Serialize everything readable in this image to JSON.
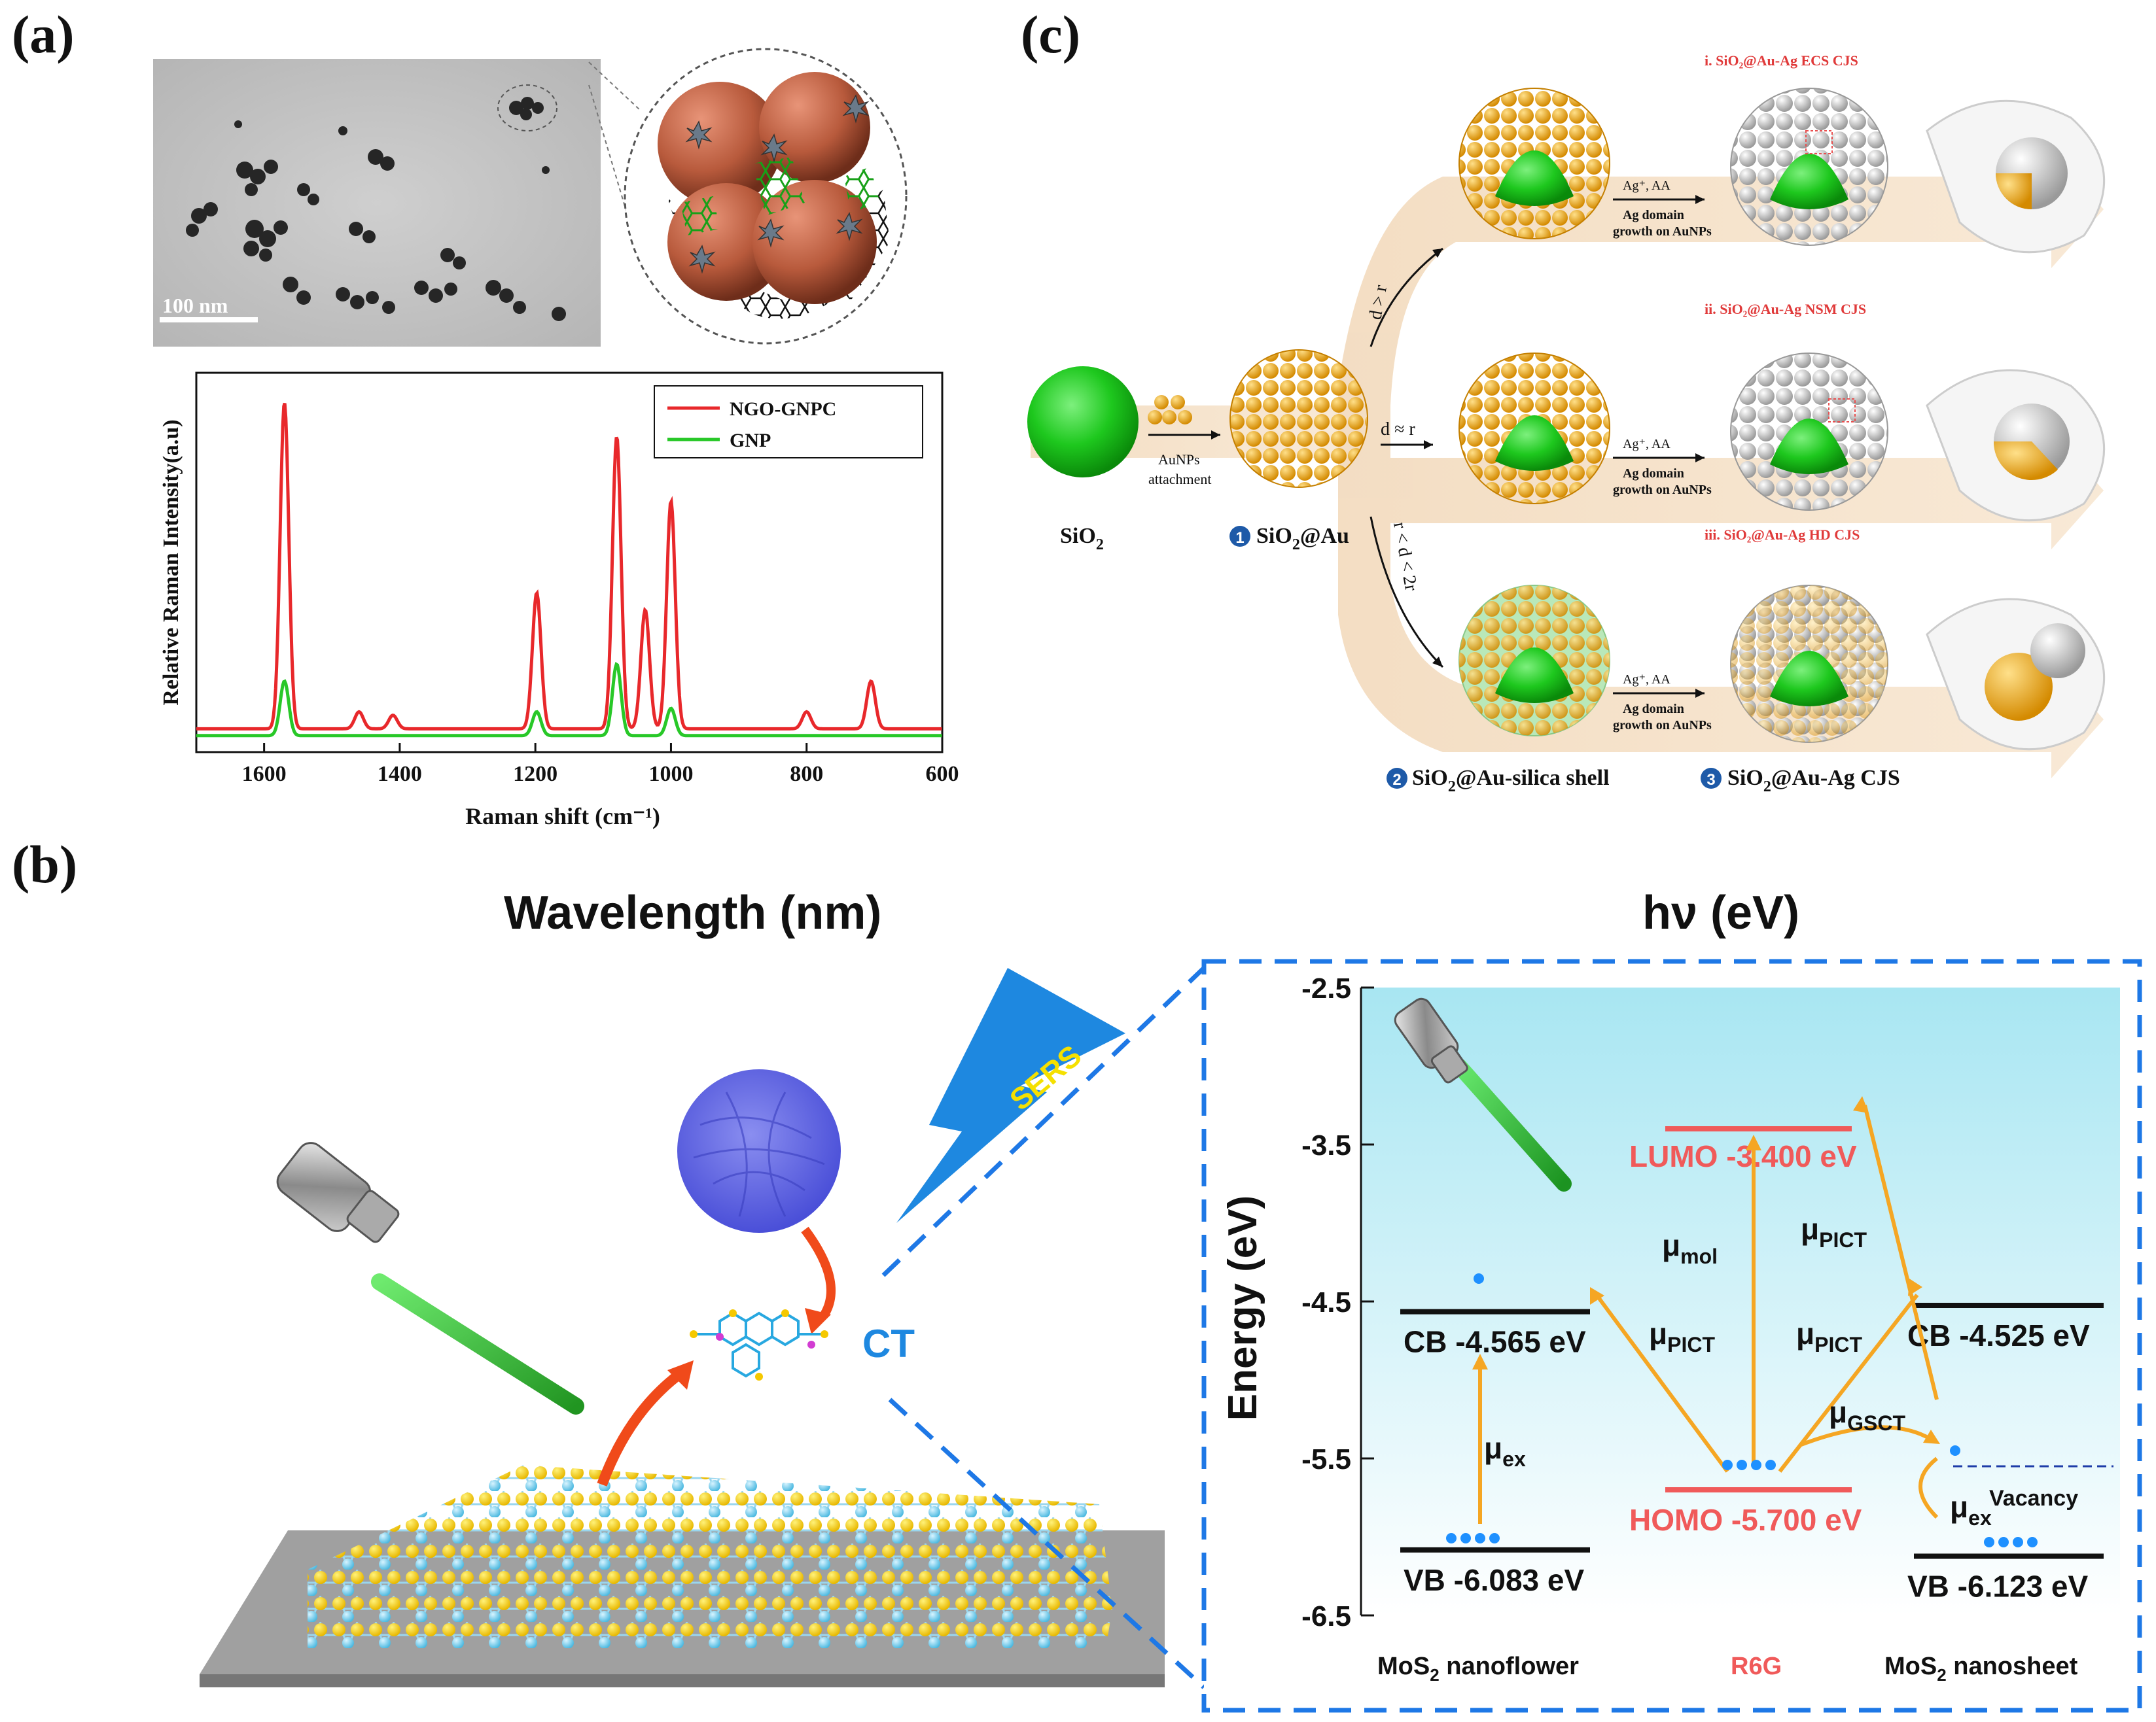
{
  "panels": {
    "a": "(a)",
    "b": "(b)",
    "c": "(c)"
  },
  "panel_a": {
    "scale_bar": "100 nm",
    "chart_data": {
      "type": "line",
      "title": "",
      "xlabel": "Raman shift (cm⁻¹)",
      "ylabel": "Relative Raman Intensity(a.u)",
      "xlim": [
        1700,
        600
      ],
      "ylim": [
        0,
        1.0
      ],
      "x_ticks": [
        1600,
        1400,
        1200,
        1000,
        800,
        600
      ],
      "legend_position": "top-right",
      "series": [
        {
          "name": "NGO-GNPC",
          "color": "#e8282b",
          "peaks": [
            [
              1570,
              0.96
            ],
            [
              1460,
              0.05
            ],
            [
              1410,
              0.04
            ],
            [
              1198,
              0.4
            ],
            [
              1080,
              0.86
            ],
            [
              1038,
              0.35
            ],
            [
              1000,
              0.67
            ],
            [
              800,
              0.05
            ],
            [
              705,
              0.14
            ]
          ],
          "baseline": 0.03
        },
        {
          "name": "GNP",
          "color": "#28c828",
          "peaks": [
            [
              1570,
              0.16
            ],
            [
              1198,
              0.07
            ],
            [
              1080,
              0.21
            ],
            [
              1000,
              0.08
            ]
          ],
          "baseline": 0.01
        }
      ]
    }
  },
  "panel_b": {
    "title_left": "Wavelength (nm)",
    "title_right": "hν (eV)",
    "sers": "SERS",
    "ct": "CT",
    "diagram": {
      "ylabel": "Energy (eV)",
      "yticks": [
        "-2.5",
        "-3.5",
        "-4.5",
        "-5.5",
        "-6.5"
      ],
      "ylim": [
        -6.5,
        -2.5
      ],
      "levels": [
        {
          "name": "CB",
          "label": "CB  -4.565 eV",
          "energy": -4.565,
          "group": "MoS2 nanoflower"
        },
        {
          "name": "VB",
          "label": "VB  -6.083 eV",
          "energy": -6.083,
          "group": "MoS2 nanoflower"
        },
        {
          "name": "LUMO",
          "label": "LUMO -3.400 eV",
          "energy": -3.4,
          "group": "R6G"
        },
        {
          "name": "HOMO",
          "label": "HOMO -5.700 eV",
          "energy": -5.7,
          "group": "R6G"
        },
        {
          "name": "CB",
          "label": "CB  -4.525 eV",
          "energy": -4.525,
          "group": "MoS2 nanosheet"
        },
        {
          "name": "VB",
          "label": "VB  -6.123 eV",
          "energy": -6.123,
          "group": "MoS2 nanosheet"
        },
        {
          "name": "Vacancy",
          "label": "Vacancy",
          "energy": -5.55,
          "group": "MoS2 nanosheet"
        }
      ],
      "transitions": {
        "mu_ex": "μ",
        "ex": "ex",
        "mu_mol": "μ",
        "mol": "mol",
        "mu_pict": "μ",
        "pict": "PICT",
        "mu_gsct": "μ",
        "gsct": "GSCT"
      },
      "groups": {
        "left_a": "MoS",
        "left_b": "2",
        "left_c": " nanoflower",
        "mid": "R6G",
        "right_a": "MoS",
        "right_b": "2",
        "right_c": " nanosheet"
      }
    }
  },
  "panel_c": {
    "sio2": "SiO",
    "sub2": "2",
    "step1": "SiO",
    "step1_b": "@Au",
    "step2": "SiO",
    "step2_b": "@Au-silica shell",
    "step3": "SiO",
    "step3_b": "@Au-Ag CJS",
    "num1": "1",
    "num2": "2",
    "num3": "3",
    "attach_a": "AuNPs",
    "attach_b": "attachment",
    "d_gt_r": "d > r",
    "d_eq_r": "d ≈ r",
    "d_range": "r < d < 2r",
    "reagent": "Ag⁺, AA",
    "growth_a": "Ag domain",
    "growth_b": "growth on AuNPs",
    "label_i": "i. SiO₂@Au-Ag ECS CJS",
    "label_ii": "ii. SiO₂@Au-Ag NSM CJS",
    "label_iii": "iii. SiO₂@Au-Ag HD CJS"
  },
  "colors": {
    "red": "#e8282b",
    "green": "#28c828",
    "blue_frame": "#1e78e6",
    "orange": "#f5a623",
    "level_red": "#f05a5a",
    "level_black": "#111111",
    "dot_blue": "#1e90ff"
  }
}
